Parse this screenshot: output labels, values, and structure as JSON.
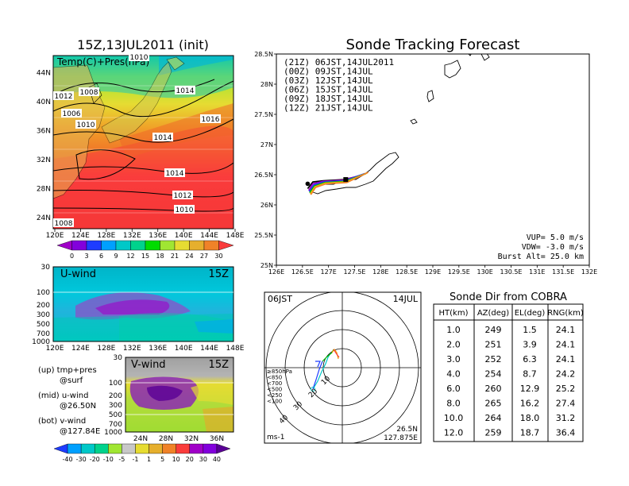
{
  "chart_data": [
    {
      "type": "heatmap",
      "title": "15Z,13JUL2011 (init)",
      "subtitle": "Temp(C)+Pres(hPa)",
      "x_ticks": [
        "120E",
        "124E",
        "128E",
        "132E",
        "136E",
        "140E",
        "144E",
        "148E"
      ],
      "y_ticks": [
        "24N",
        "28N",
        "32N",
        "36N",
        "40N",
        "44N"
      ],
      "isobar_labels": [
        "1010",
        "1012",
        "1008",
        "1006",
        "1014",
        "1010",
        "1014",
        "1016",
        "1014",
        "1012",
        "1010",
        "1008"
      ],
      "colorbar_ticks": [
        "0",
        "3",
        "6",
        "9",
        "12",
        "15",
        "18",
        "21",
        "24",
        "27",
        "30"
      ],
      "colors": [
        "#a000c8",
        "#8200dc",
        "#1e3cff",
        "#00a0ff",
        "#00c8c8",
        "#00d28c",
        "#00dc00",
        "#a0e632",
        "#e6dc32",
        "#e6af2d",
        "#f08228",
        "#fa3c3c"
      ]
    },
    {
      "type": "heatmap",
      "label": "U-wind",
      "time": "15Z",
      "y_ticks": [
        "30",
        "100",
        "200",
        "300",
        "500",
        "700",
        "1000"
      ],
      "x_ticks": [
        "120E",
        "124E",
        "128E",
        "132E",
        "136E",
        "140E",
        "144E",
        "148E"
      ]
    },
    {
      "type": "heatmap",
      "label": "V-wind",
      "time": "15Z",
      "y_ticks": [
        "30",
        "100",
        "200",
        "300",
        "500",
        "700",
        "1000"
      ],
      "x_ticks": [
        "24N",
        "28N",
        "32N",
        "36N"
      ],
      "colorbar_ticks": [
        "-40",
        "-30",
        "-20",
        "-10",
        "-5",
        "-1",
        "1",
        "5",
        "10",
        "20",
        "30",
        "40"
      ],
      "colors": [
        "#1e3cff",
        "#00a0ff",
        "#00c8c8",
        "#00d28c",
        "#a0e632",
        "#c8c8c8",
        "#e6dc32",
        "#e6af2d",
        "#f08228",
        "#fa3c3c",
        "#a000c8",
        "#8200dc",
        "#5a0096"
      ]
    },
    {
      "type": "line",
      "title": "Sonde Tracking Forecast",
      "xlim": [
        126,
        132
      ],
      "ylim": [
        25,
        28.5
      ],
      "x_ticks": [
        "126E",
        "126.5E",
        "127E",
        "127.5E",
        "128E",
        "128.5E",
        "129E",
        "129.5E",
        "130E",
        "130.5E",
        "131E",
        "131.5E",
        "132E"
      ],
      "y_ticks": [
        "25N",
        "25.5N",
        "26N",
        "26.5N",
        "27N",
        "27.5N",
        "28N",
        "28.5N"
      ],
      "series": [
        {
          "name": "(21Z)  06JST,14JUL2011",
          "color": "#000000",
          "x": [
            126.6,
            126.7,
            126.9,
            127.3,
            127.6
          ],
          "y": [
            26.27,
            26.38,
            26.4,
            26.42,
            26.48
          ]
        },
        {
          "name": "(00Z)  09JST,14JUL",
          "color": "#a000c8",
          "x": [
            126.62,
            126.7,
            126.9,
            127.3,
            127.65
          ],
          "y": [
            26.24,
            26.35,
            26.39,
            26.41,
            26.5
          ]
        },
        {
          "name": "(03Z)  12JST,14JUL",
          "color": "#1e3cff",
          "x": [
            126.63,
            126.72,
            126.92,
            127.32,
            127.7
          ],
          "y": [
            26.22,
            26.33,
            26.38,
            26.4,
            26.52
          ]
        },
        {
          "name": "(06Z)  15JST,14JUL",
          "color": "#00b400",
          "x": [
            126.64,
            126.73,
            126.93,
            127.33,
            127.72
          ],
          "y": [
            26.2,
            26.31,
            26.37,
            26.39,
            26.52
          ]
        },
        {
          "name": "(09Z)  18JST,14JUL",
          "color": "#e6c800",
          "x": [
            126.65,
            126.74,
            126.94,
            127.34,
            127.74
          ],
          "y": [
            26.18,
            26.3,
            26.36,
            26.38,
            26.53
          ]
        },
        {
          "name": "(12Z)  21JST,14JUL",
          "color": "#f08228",
          "x": [
            126.66,
            126.75,
            126.95,
            127.35,
            127.76
          ],
          "y": [
            26.17,
            26.29,
            26.35,
            26.37,
            26.54
          ]
        }
      ],
      "annotations": [
        "VUP=  5.0  m/s",
        "VDW=  -3.0  m/s",
        "Burst Alt=  25.0  km"
      ]
    },
    {
      "type": "scatter",
      "label_left": "06JST",
      "label_right": "14JUL",
      "ring_labels": [
        "10",
        "20",
        "30",
        "40"
      ],
      "pressure_legend": [
        "≥850hPa",
        "<850",
        "<700",
        "<500",
        "<250",
        "<100"
      ],
      "pressure_colors": [
        "#fa3c3c",
        "#f0a000",
        "#00b400",
        "#1e3cff",
        "#00c8c8",
        "#1e3cff"
      ],
      "position": "26.5N\n127.875E",
      "units": "ms-1"
    },
    {
      "type": "table",
      "title": "Sonde Dir from COBRA",
      "columns": [
        "HT(km)",
        "AZ(deg)",
        "EL(deg)",
        "RNG(km)"
      ],
      "rows": [
        [
          "1.0",
          "249",
          "1.5",
          "24.1"
        ],
        [
          "2.0",
          "251",
          "3.9",
          "24.1"
        ],
        [
          "3.0",
          "252",
          "6.3",
          "24.1"
        ],
        [
          "4.0",
          "254",
          "8.7",
          "24.2"
        ],
        [
          "6.0",
          "260",
          "12.9",
          "25.2"
        ],
        [
          "8.0",
          "265",
          "16.2",
          "27.4"
        ],
        [
          "10.0",
          "264",
          "18.0",
          "31.2"
        ],
        [
          "12.0",
          "259",
          "18.7",
          "36.4"
        ]
      ]
    }
  ],
  "legend_text": {
    "up": "(up)  tmp+pres",
    "up2": "@surf",
    "mid": "(mid)  u-wind",
    "mid2": "@26.50N",
    "bot": "(bot)  v-wind",
    "bot2": "@127.84E"
  }
}
